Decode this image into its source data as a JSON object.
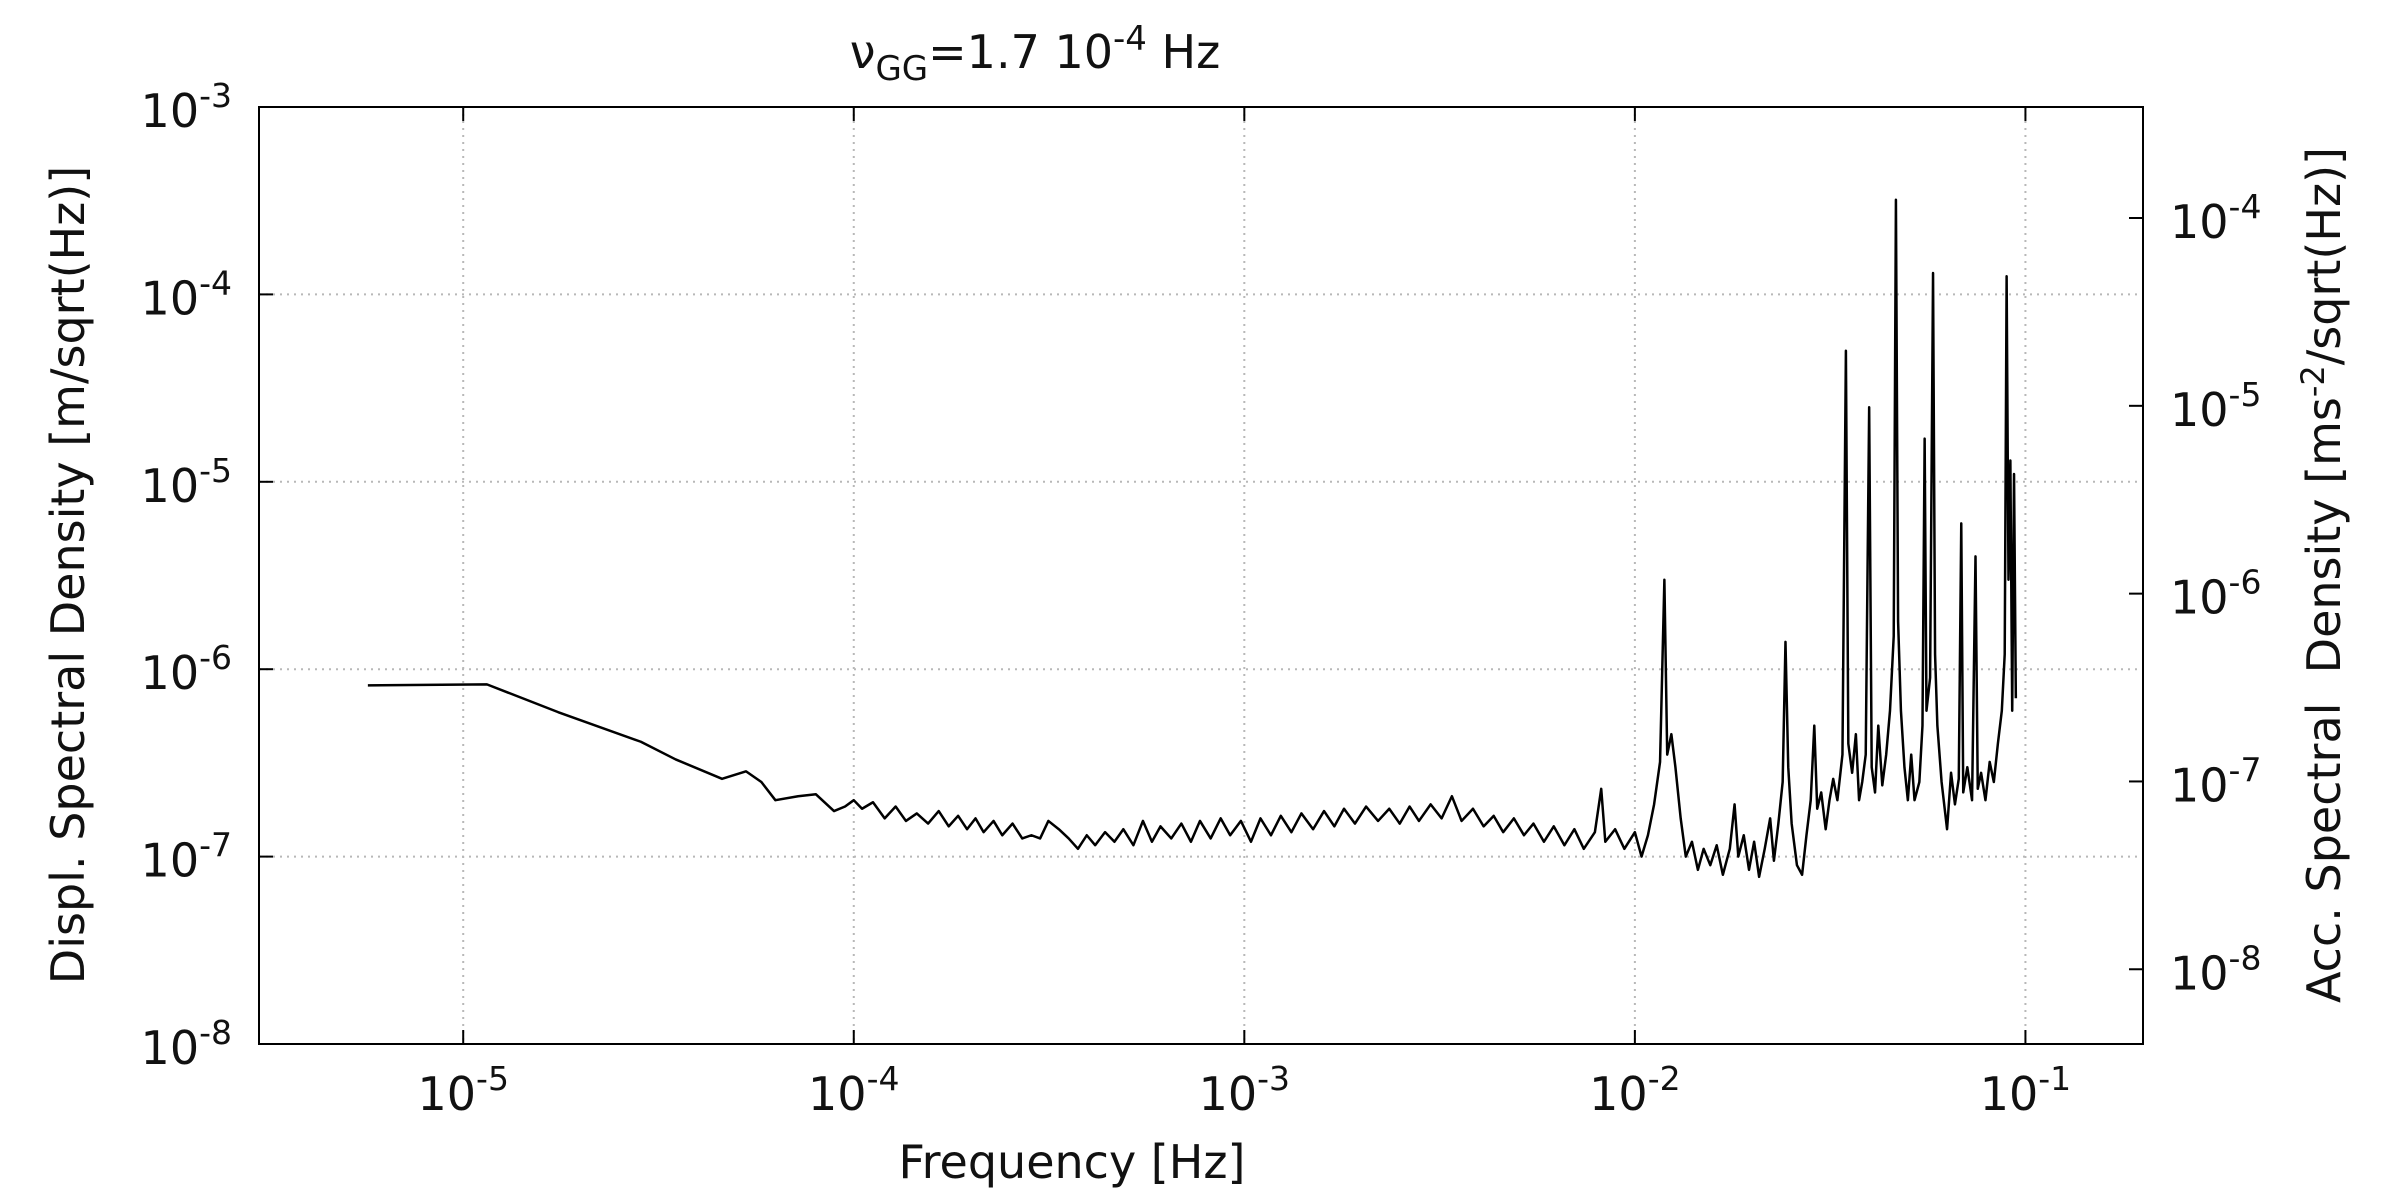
{
  "chart_data": {
    "type": "line",
    "title": {
      "symbol": "ν",
      "subscript": "GG",
      "value": "=1.7 10",
      "exponent": "-4",
      "unit": " Hz"
    },
    "xlabel": "Frequency [Hz]",
    "ylabel": "Displ. Spectral Density [m/sqrt(Hz)]",
    "y2label": {
      "text": "Acc. Spectral  Density [ms",
      "exponent": "-2",
      "rest": "/sqrt(Hz)]"
    },
    "xscale": "log",
    "yscale": "log",
    "y2scale": "log",
    "grid": true,
    "color": "#000000",
    "xlim": [
      3e-06,
      0.2
    ],
    "ylim": [
      1e-08,
      0.001
    ],
    "y2lim": [
      4e-09,
      0.00039
    ],
    "xticks": [
      {
        "value": 1e-05,
        "label": [
          "10",
          "-5"
        ]
      },
      {
        "value": 0.0001,
        "label": [
          "10",
          "-4"
        ]
      },
      {
        "value": 0.001,
        "label": [
          "10",
          "-3"
        ]
      },
      {
        "value": 0.01,
        "label": [
          "10",
          "-2"
        ]
      },
      {
        "value": 0.1,
        "label": [
          "10",
          "-1"
        ]
      }
    ],
    "yticks": [
      {
        "value": 1e-08,
        "label": [
          "10",
          "-8"
        ]
      },
      {
        "value": 1e-07,
        "label": [
          "10",
          "-7"
        ]
      },
      {
        "value": 1e-06,
        "label": [
          "10",
          "-6"
        ]
      },
      {
        "value": 1e-05,
        "label": [
          "10",
          "-5"
        ]
      },
      {
        "value": 0.0001,
        "label": [
          "10",
          "-4"
        ]
      },
      {
        "value": 0.001,
        "label": [
          "10",
          "-3"
        ]
      }
    ],
    "y2ticks": [
      {
        "value": 1e-08,
        "label": [
          "10",
          "-8"
        ]
      },
      {
        "value": 1e-07,
        "label": [
          "10",
          "-7"
        ]
      },
      {
        "value": 1e-06,
        "label": [
          "10",
          "-6"
        ]
      },
      {
        "value": 1e-05,
        "label": [
          "10",
          "-5"
        ]
      },
      {
        "value": 0.0001,
        "label": [
          "10",
          "-4"
        ]
      }
    ],
    "x": [
      5.7e-06,
      1.15e-05,
      1.75e-05,
      2.85e-05,
      3.5e-05,
      4.6e-05,
      5.3e-05,
      5.8e-05,
      6.3e-05,
      7.2e-05,
      8e-05,
      8.9e-05,
      9.5e-05,
      0.0001,
      0.000105,
      0.000112,
      0.00012,
      0.000128,
      0.000136,
      0.000145,
      0.000155,
      0.000165,
      0.000175,
      0.000185,
      0.000195,
      0.000205,
      0.000215,
      0.000228,
      0.00024,
      0.000255,
      0.00027,
      0.000285,
      0.0003,
      0.000315,
      0.000335,
      0.000355,
      0.000375,
      0.000395,
      0.000415,
      0.00044,
      0.000465,
      0.00049,
      0.00052,
      0.00055,
      0.00058,
      0.00061,
      0.00065,
      0.00069,
      0.00073,
      0.00077,
      0.00082,
      0.00087,
      0.00092,
      0.00098,
      0.00104,
      0.0011,
      0.00117,
      0.00124,
      0.00132,
      0.0014,
      0.0015,
      0.0016,
      0.0017,
      0.0018,
      0.00192,
      0.00205,
      0.0022,
      0.00235,
      0.0025,
      0.00265,
      0.0028,
      0.003,
      0.0032,
      0.0034,
      0.0036,
      0.00385,
      0.0041,
      0.00435,
      0.0046,
      0.0049,
      0.0052,
      0.0055,
      0.00585,
      0.0062,
      0.0066,
      0.007,
      0.0074,
      0.0079,
      0.0082,
      0.0084,
      0.0089,
      0.0094,
      0.01,
      0.0104,
      0.0108,
      0.0112,
      0.0116,
      0.0119,
      0.0121,
      0.0124,
      0.0127,
      0.0131,
      0.0135,
      0.014,
      0.0145,
      0.015,
      0.0156,
      0.0162,
      0.0168,
      0.0175,
      0.018,
      0.0184,
      0.019,
      0.0196,
      0.0202,
      0.0208,
      0.0215,
      0.0222,
      0.0227,
      0.0233,
      0.0239,
      0.0243,
      0.0247,
      0.0252,
      0.026,
      0.0268,
      0.0275,
      0.0282,
      0.0288,
      0.0293,
      0.03,
      0.0308,
      0.0315,
      0.0322,
      0.033,
      0.034,
      0.0347,
      0.0352,
      0.036,
      0.0368,
      0.0375,
      0.0382,
      0.039,
      0.0398,
      0.0404,
      0.0412,
      0.042,
      0.043,
      0.044,
      0.045,
      0.046,
      0.0466,
      0.0472,
      0.048,
      0.049,
      0.05,
      0.051,
      0.052,
      0.0535,
      0.0545,
      0.0552,
      0.0558,
      0.057,
      0.058,
      0.0587,
      0.0595,
      0.061,
      0.063,
      0.0645,
      0.066,
      0.0675,
      0.0685,
      0.0693,
      0.071,
      0.073,
      0.0745,
      0.0755,
      0.077,
      0.079,
      0.081,
      0.083,
      0.085,
      0.087,
      0.0885,
      0.0895,
      0.0905,
      0.0915,
      0.0925,
      0.0935,
      0.0945
    ],
    "values": [
      8.2e-07,
      8.3e-07,
      5.9e-07,
      4.1e-07,
      3.3e-07,
      2.6e-07,
      2.85e-07,
      2.5e-07,
      2e-07,
      2.1e-07,
      2.15e-07,
      1.75e-07,
      1.85e-07,
      2e-07,
      1.8e-07,
      1.95e-07,
      1.6e-07,
      1.85e-07,
      1.55e-07,
      1.7e-07,
      1.5e-07,
      1.75e-07,
      1.45e-07,
      1.65e-07,
      1.4e-07,
      1.6e-07,
      1.35e-07,
      1.55e-07,
      1.3e-07,
      1.5e-07,
      1.25e-07,
      1.3e-07,
      1.25e-07,
      1.55e-07,
      1.4e-07,
      1.25e-07,
      1.1e-07,
      1.3e-07,
      1.15e-07,
      1.35e-07,
      1.2e-07,
      1.4e-07,
      1.15e-07,
      1.55e-07,
      1.2e-07,
      1.45e-07,
      1.25e-07,
      1.5e-07,
      1.2e-07,
      1.55e-07,
      1.25e-07,
      1.6e-07,
      1.3e-07,
      1.55e-07,
      1.2e-07,
      1.6e-07,
      1.3e-07,
      1.65e-07,
      1.35e-07,
      1.7e-07,
      1.4e-07,
      1.75e-07,
      1.45e-07,
      1.8e-07,
      1.5e-07,
      1.85e-07,
      1.55e-07,
      1.8e-07,
      1.5e-07,
      1.85e-07,
      1.55e-07,
      1.9e-07,
      1.6e-07,
      2.1e-07,
      1.55e-07,
      1.8e-07,
      1.45e-07,
      1.65e-07,
      1.35e-07,
      1.6e-07,
      1.3e-07,
      1.5e-07,
      1.2e-07,
      1.45e-07,
      1.15e-07,
      1.4e-07,
      1.1e-07,
      1.35e-07,
      2.3e-07,
      1.2e-07,
      1.4e-07,
      1.1e-07,
      1.35e-07,
      1e-07,
      1.3e-07,
      1.9e-07,
      3.2e-07,
      3e-06,
      3.5e-07,
      4.5e-07,
      3e-07,
      1.6e-07,
      1e-07,
      1.2e-07,
      8.5e-08,
      1.1e-07,
      9e-08,
      1.15e-07,
      8e-08,
      1.1e-07,
      1.9e-07,
      1e-07,
      1.3e-07,
      8.5e-08,
      1.2e-07,
      7.8e-08,
      1.1e-07,
      1.6e-07,
      9.5e-08,
      1.5e-07,
      2.5e-07,
      1.4e-06,
      3e-07,
      1.5e-07,
      9e-08,
      8e-08,
      1.3e-07,
      2e-07,
      5e-07,
      1.8e-07,
      2.2e-07,
      1.4e-07,
      2e-07,
      2.6e-07,
      2e-07,
      3.5e-07,
      5e-05,
      4e-07,
      2.8e-07,
      4.5e-07,
      2e-07,
      2.5e-07,
      3.5e-07,
      2.5e-05,
      3e-07,
      2.2e-07,
      5e-07,
      2.4e-07,
      3.5e-07,
      6e-07,
      1.5e-06,
      0.00032,
      1.8e-06,
      6e-07,
      3e-07,
      2e-07,
      3.5e-07,
      2e-07,
      2.5e-07,
      5e-07,
      1.7e-05,
      6e-07,
      9e-07,
      0.00013,
      1.2e-06,
      5e-07,
      2.5e-07,
      1.4e-07,
      2.8e-07,
      1.9e-07,
      2.6e-07,
      6e-06,
      2.2e-07,
      3e-07,
      2e-07,
      4e-06,
      2.3e-07,
      2.8e-07,
      2e-07,
      3.2e-07,
      2.5e-07,
      4e-07,
      6e-07,
      1.2e-06,
      0.000125,
      3e-06,
      1.3e-05,
      6e-07,
      1.1e-05,
      7e-07
    ]
  }
}
